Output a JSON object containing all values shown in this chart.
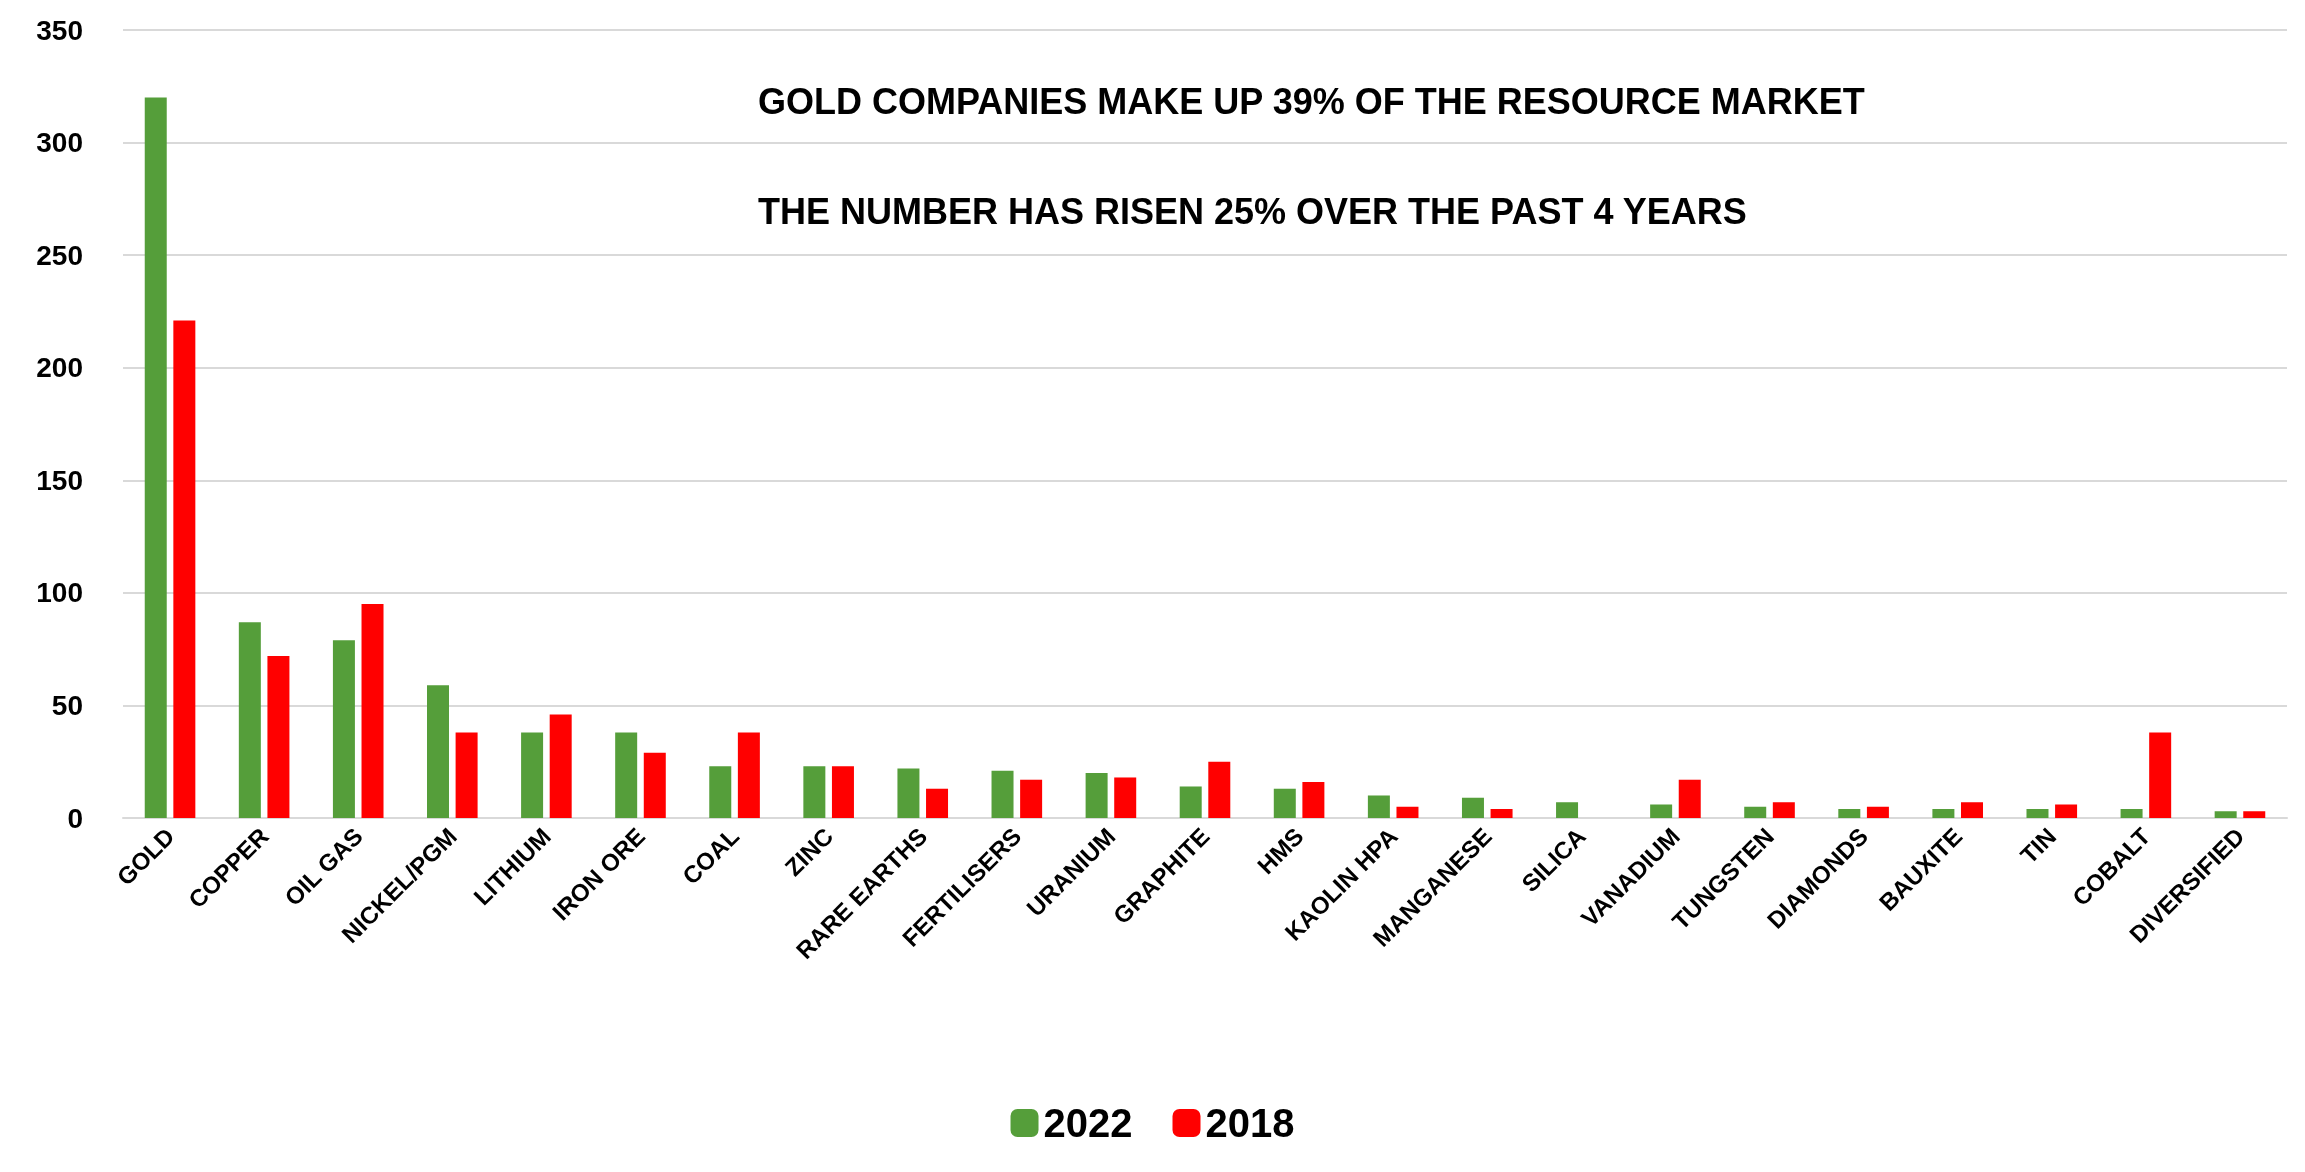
{
  "chart_data": {
    "type": "bar",
    "categories": [
      "GOLD",
      "COPPER",
      "OIL GAS",
      "NICKEL/PGM",
      "LITHIUM",
      "IRON ORE",
      "COAL",
      "ZINC",
      "RARE EARTHS",
      "FERTILISERS",
      "URANIUM",
      "GRAPHITE",
      "HMS",
      "KAOLIN HPA",
      "MANGANESE",
      "SILICA",
      "VANADIUM",
      "TUNGSTEN",
      "DIAMONDS",
      "BAUXITE",
      "TIN",
      "COBALT",
      "DIVERSIFIED"
    ],
    "series": [
      {
        "name": "2022",
        "color": "#559e3a",
        "values": [
          320,
          87,
          79,
          59,
          38,
          38,
          23,
          23,
          22,
          21,
          20,
          14,
          13,
          10,
          9,
          7,
          6,
          5,
          4,
          4,
          4,
          4,
          3
        ]
      },
      {
        "name": "2018",
        "color": "#ff0000",
        "values": [
          221,
          72,
          95,
          38,
          46,
          29,
          38,
          23,
          13,
          17,
          18,
          25,
          16,
          5,
          4,
          0,
          17,
          7,
          5,
          7,
          6,
          38,
          3
        ]
      }
    ],
    "ylim": [
      0,
      350
    ],
    "yticks": [
      0,
      50,
      100,
      150,
      200,
      250,
      300,
      350
    ],
    "grid": "y",
    "legend": "bottom",
    "annotations": [
      "GOLD COMPANIES MAKE UP 39% OF THE RESOURCE MARKET",
      "THE NUMBER HAS RISEN 25% OVER THE PAST 4 YEARS"
    ]
  }
}
